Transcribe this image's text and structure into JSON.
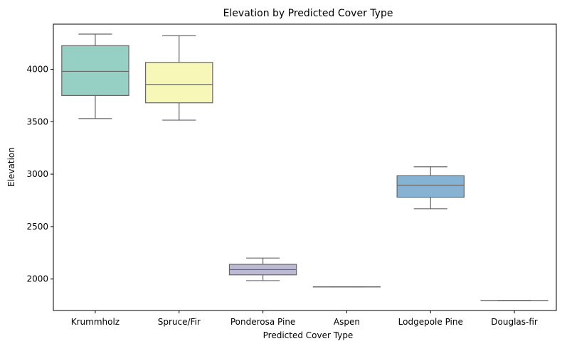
{
  "chart_data": {
    "type": "box",
    "title": "Elevation by Predicted Cover Type",
    "xlabel": "Predicted Cover Type",
    "ylabel": "Elevation",
    "ylim": [
      1700,
      4430
    ],
    "yticks": [
      2000,
      2500,
      3000,
      3500,
      4000
    ],
    "grid": false,
    "categories": [
      "Krummholz",
      "Spruce/Fir",
      "Ponderosa Pine",
      "Aspen",
      "Lodgepole Pine",
      "Douglas-fir"
    ],
    "boxes": [
      {
        "category": "Krummholz",
        "whisker_low": 3530,
        "q1": 3750,
        "median": 3980,
        "q3": 4225,
        "whisker_high": 4335,
        "color": "#96cfc4"
      },
      {
        "category": "Spruce/Fir",
        "whisker_low": 3515,
        "q1": 3680,
        "median": 3855,
        "q3": 4065,
        "whisker_high": 4320,
        "color": "#f7f7b8"
      },
      {
        "category": "Ponderosa Pine",
        "whisker_low": 1985,
        "q1": 2040,
        "median": 2090,
        "q3": 2140,
        "whisker_high": 2200,
        "color": "#bcb9d6"
      },
      {
        "category": "Aspen",
        "whisker_low": 1925,
        "q1": 1925,
        "median": 1925,
        "q3": 1925,
        "whisker_high": 1925,
        "color": "#ee8a7c"
      },
      {
        "category": "Lodgepole Pine",
        "whisker_low": 2670,
        "q1": 2780,
        "median": 2895,
        "q3": 2985,
        "whisker_high": 3070,
        "color": "#86b2d4"
      },
      {
        "category": "Douglas-fir",
        "whisker_low": 1795,
        "q1": 1795,
        "median": 1795,
        "q3": 1795,
        "whisker_high": 1795,
        "color": "#f5b56f"
      }
    ],
    "line_color": "#666666"
  }
}
